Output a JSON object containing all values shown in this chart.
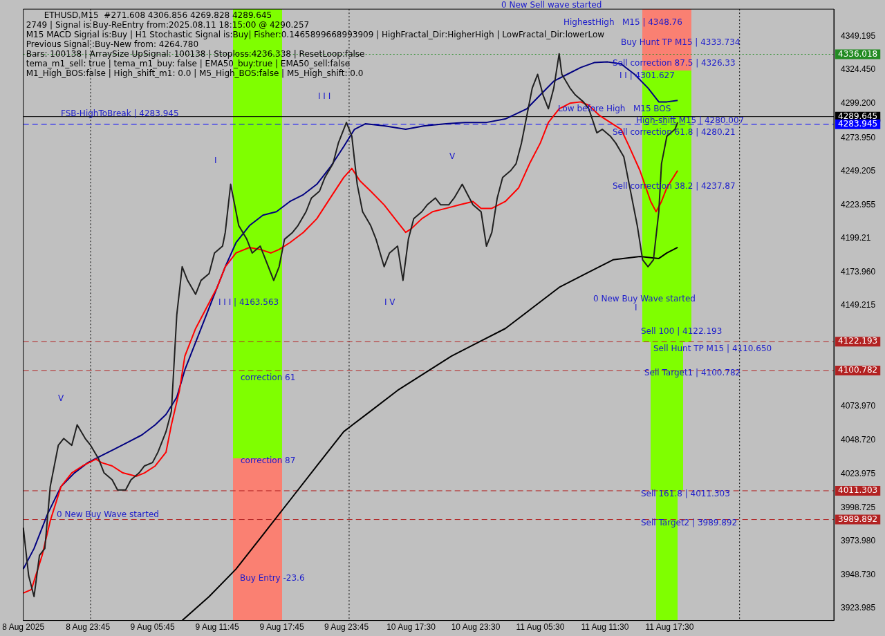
{
  "chart_data": {
    "type": "line",
    "title": "ETHUSD,M15  #271.608 4306.856 4269.828 4289.645",
    "categories": [
      "8 Aug 2025",
      null,
      null,
      null,
      null,
      null,
      null,
      null,
      null,
      null,
      null,
      null,
      null,
      null,
      null,
      null,
      null,
      null,
      null,
      null,
      null,
      null,
      null,
      null,
      "8 Aug 23:45",
      null,
      null,
      null,
      null,
      null,
      null,
      null,
      null,
      null,
      null,
      null,
      null,
      null,
      null,
      null,
      null,
      null,
      null,
      null,
      null,
      null,
      null,
      null,
      "9 Aug 05:45",
      null,
      null,
      null,
      null,
      null,
      null,
      null,
      null,
      null,
      null,
      null,
      null,
      null,
      null,
      null,
      null,
      null,
      null,
      null,
      null,
      null,
      null,
      null,
      "9 Aug 11:45",
      null,
      null,
      null,
      null,
      null,
      null,
      null,
      null,
      null,
      null,
      null,
      null,
      null,
      null,
      null,
      null,
      null,
      null,
      null,
      null,
      null,
      null,
      null,
      "9 Aug 17:45",
      null,
      null,
      null,
      null,
      null,
      null,
      null,
      null,
      null,
      null,
      null,
      null,
      null,
      null,
      null,
      null,
      null,
      null,
      null,
      null,
      null,
      null,
      null,
      "9 Aug 23:45",
      null,
      null,
      null,
      null,
      null,
      null,
      null,
      null,
      null,
      null,
      null,
      null,
      null,
      null,
      null,
      null,
      null,
      null,
      null,
      null,
      null,
      null,
      null,
      "10 Aug 17:30",
      null,
      null,
      null,
      null,
      null,
      null,
      null,
      null,
      null,
      null,
      null,
      null,
      null,
      null,
      null,
      null,
      null,
      null,
      null,
      null,
      null,
      null,
      null,
      "10 Aug 23:30",
      null,
      null,
      null,
      null,
      null,
      null,
      null,
      null,
      null,
      null,
      null,
      null,
      null,
      null,
      null,
      null,
      null,
      null,
      null,
      null,
      null,
      null,
      null,
      "11 Aug 05:30",
      null,
      null,
      null,
      null,
      null,
      null,
      null,
      null,
      null,
      null,
      null,
      null,
      null,
      null,
      null,
      null,
      null,
      null,
      null,
      null,
      null,
      null,
      null,
      "11 Aug 11:30",
      null,
      null,
      null,
      null,
      null,
      null,
      null,
      null,
      null,
      null,
      null,
      null,
      null,
      null,
      null,
      null,
      null,
      null,
      null,
      null,
      null,
      null,
      null,
      "11 Aug 17:30",
      null,
      null,
      null,
      null,
      null,
      null,
      null,
      null,
      null,
      null,
      null,
      null,
      null,
      null,
      null,
      null,
      null,
      null,
      null,
      null,
      null,
      null,
      null,
      null,
      null,
      null,
      null,
      null,
      null,
      null,
      null,
      null,
      null,
      null,
      null,
      null,
      null,
      null,
      null,
      null,
      null,
      null,
      null,
      null,
      null,
      null,
      null,
      null,
      null,
      null,
      null,
      null,
      null,
      null,
      null,
      null,
      null,
      null,
      null,
      null,
      null
    ],
    "ylim": [
      3914.8,
      4369.6
    ],
    "yticks": [
      4349.195,
      {
        "value": 4324.45,
        "label": "4324.450"
      },
      {
        "value": 4299.2,
        "label": "4299.200"
      },
      {
        "value": 4273.95,
        "label": "4273.950"
      },
      4249.205,
      4223.955,
      4199.21,
      {
        "value": 4173.96,
        "label": "4173.960"
      },
      4149.215,
      {
        "value": 4073.97,
        "label": "4073.970"
      },
      {
        "value": 4048.72,
        "label": "4048.720"
      },
      4023.975,
      3998.725,
      {
        "value": 3973.98,
        "label": "3973.980"
      },
      {
        "value": 3948.73,
        "label": "3948.730"
      },
      3923.985
    ],
    "grid": false,
    "legend": false,
    "marker": "none",
    "line_style": "solid",
    "series": [
      {
        "color": "#202020",
        "values": [
          3983.8,
          null,
          3948.0,
          null,
          3932.6,
          null,
          3963.3,
          null,
          3968.4,
          null,
          4014.4,
          null,
          null,
          4045.1,
          null,
          4050.2,
          null,
          null,
          4045.1,
          null,
          4060.4,
          null,
          null,
          4050.2,
          null,
          4045.1,
          null,
          null,
          4034.9,
          null,
          4024.6,
          null,
          null,
          4019.5,
          null,
          4011.9,
          null,
          null,
          4011.9,
          null,
          4019.5,
          null,
          null,
          4024.6,
          null,
          4029.8,
          null,
          null,
          4032.3,
          null,
          4040.0,
          null,
          null,
          4055.3,
          null,
          4070.6,
          null,
          4142.2,
          null,
          4178.0,
          null,
          4167.8,
          null,
          null,
          4157.5,
          null,
          4167.8,
          null,
          null,
          4172.9,
          null,
          4188.2,
          null,
          null,
          4193.3,
          4203.5,
          null,
          4239.3,
          null,
          4218.9,
          4208.6,
          null,
          null,
          4198.4,
          null,
          4188.2,
          null,
          null,
          4193.3,
          null,
          4183.1,
          null,
          null,
          4167.8,
          null,
          4178.0,
          null,
          4198.4,
          null,
          null,
          4203.5,
          null,
          4208.6,
          null,
          null,
          4218.9,
          null,
          4229.1,
          null,
          null,
          4234.2,
          null,
          4244.4,
          null,
          null,
          4254.6,
          null,
          4270.0,
          null,
          null,
          4285.3,
          null,
          4275.1,
          null,
          4239.3,
          null,
          4218.9,
          null,
          null,
          4208.6,
          null,
          4198.4,
          null,
          null,
          4178.0,
          null,
          4188.2,
          null,
          null,
          4193.3,
          null,
          4167.8,
          null,
          4198.4,
          null,
          4213.7,
          null,
          null,
          4218.9,
          null,
          4224.0,
          null,
          null,
          4229.1,
          null,
          4224.0,
          null,
          null,
          4224.0,
          null,
          4229.1,
          null,
          null,
          4239.3,
          null,
          4231.6,
          null,
          4224.0,
          null,
          null,
          4218.9,
          null,
          4193.3,
          null,
          4203.5,
          null,
          4229.1,
          null,
          4244.4,
          null,
          null,
          4249.5,
          null,
          4254.6,
          null,
          4270.0,
          null,
          4290.4,
          null,
          4310.9,
          null,
          4321.1,
          null,
          4305.8,
          null,
          4295.5,
          null,
          4310.9,
          null,
          4336.4,
          4321.1,
          null,
          null,
          4310.9,
          null,
          4305.8,
          null,
          null,
          4300.6,
          null,
          4295.5,
          null,
          null,
          4277.6,
          null,
          4280.2,
          null,
          null,
          4275.1,
          null,
          4270.0,
          null,
          null,
          4259.8,
          null,
          4239.3,
          null,
          null,
          4208.6,
          null,
          4183.1,
          null,
          4178.0,
          null,
          4183.1,
          null,
          4218.9,
          4254.6,
          null,
          4275.1,
          null,
          null,
          4280.2,
          4285.3,
          null,
          null,
          null,
          null,
          null,
          null,
          null,
          null,
          null,
          null,
          null,
          null,
          null,
          null,
          null,
          null,
          null,
          null,
          null,
          null,
          null,
          null,
          null,
          null,
          null,
          null,
          null,
          null,
          null,
          null,
          null,
          null,
          null,
          null,
          null,
          null,
          null,
          null,
          null,
          null,
          null,
          null,
          null,
          null,
          null,
          null,
          null,
          null,
          null,
          null,
          null,
          null,
          null,
          null,
          null,
          null,
          null,
          null
        ]
      },
      {
        "color": "#ff0000",
        "values": [
          3935.2,
          null,
          null,
          3937.8,
          null,
          null,
          null,
          3963.3,
          null,
          null,
          3988.9,
          null,
          null,
          null,
          4014.4,
          null,
          null,
          null,
          4024.6,
          null,
          null,
          null,
          4029.8,
          null,
          null,
          null,
          null,
          4034.9,
          null,
          4032.3,
          null,
          null,
          null,
          4029.8,
          null,
          null,
          null,
          4024.6,
          null,
          null,
          null,
          null,
          4022.1,
          null,
          null,
          4024.6,
          null,
          null,
          null,
          4029.8,
          null,
          null,
          null,
          4040.0,
          null,
          4060.4,
          null,
          null,
          4086.0,
          null,
          4111.5,
          null,
          null,
          null,
          4132.0,
          null,
          null,
          null,
          4147.3,
          null,
          null,
          null,
          4162.6,
          null,
          null,
          4178.0,
          null,
          null,
          null,
          4188.2,
          null,
          null,
          null,
          null,
          4192.3,
          null,
          null,
          null,
          4190.8,
          null,
          null,
          null,
          4188.2,
          null,
          null,
          4190.8,
          null,
          null,
          null,
          4195.9,
          null,
          null,
          null,
          null,
          4203.5,
          null,
          null,
          null,
          null,
          4213.7,
          null,
          null,
          null,
          null,
          4229.1,
          null,
          null,
          null,
          null,
          4244.4,
          null,
          null,
          4251.1,
          null,
          null,
          4241.9,
          null,
          null,
          null,
          4234.2,
          null,
          null,
          null,
          null,
          4224.0,
          null,
          null,
          null,
          4213.7,
          null,
          null,
          null,
          4203.5,
          null,
          4206.1,
          null,
          null,
          null,
          4213.7,
          null,
          null,
          null,
          4218.9,
          null,
          null,
          null,
          null,
          4221.4,
          null,
          null,
          null,
          null,
          4224.0,
          null,
          null,
          null,
          null,
          4226.5,
          null,
          null,
          4221.4,
          null,
          null,
          null,
          4221.4,
          null,
          null,
          null,
          null,
          4226.5,
          null,
          null,
          null,
          null,
          4236.8,
          null,
          null,
          null,
          4254.6,
          null,
          null,
          null,
          4270.0,
          null,
          null,
          4285.3,
          null,
          null,
          null,
          4295.5,
          null,
          null,
          null,
          4299.6,
          null,
          null,
          null,
          4300.6,
          null,
          null,
          4298.1,
          null,
          null,
          null,
          4290.4,
          null,
          null,
          null,
          4285.3,
          null,
          null,
          null,
          4280.2,
          null,
          null,
          4267.4,
          null,
          null,
          null,
          4249.5,
          null,
          null,
          null,
          4226.5,
          null,
          4218.9,
          null,
          4226.5,
          null,
          4236.8,
          null,
          null,
          null,
          4249.5,
          null,
          null,
          null,
          null,
          null,
          null,
          null,
          null,
          null,
          null,
          null,
          null,
          null,
          null,
          null,
          null,
          null,
          null,
          null,
          null,
          null,
          null,
          null,
          null,
          null,
          null,
          null,
          null,
          null,
          null,
          null,
          null,
          null,
          null,
          null,
          null,
          null,
          null,
          null,
          null,
          null,
          null,
          null,
          null,
          null,
          null,
          null,
          null,
          null,
          null,
          null,
          null,
          null,
          null,
          null,
          null,
          null,
          null
        ]
      },
      {
        "color": "#000080",
        "values": [
          3953.1,
          null,
          null,
          null,
          3968.4,
          null,
          null,
          null,
          null,
          3994.0,
          null,
          null,
          null,
          null,
          4014.4,
          null,
          null,
          null,
          null,
          4024.6,
          null,
          null,
          null,
          null,
          4032.3,
          null,
          null,
          null,
          null,
          4037.4,
          null,
          null,
          null,
          null,
          4042.5,
          null,
          null,
          null,
          null,
          4047.6,
          null,
          null,
          null,
          null,
          4052.8,
          null,
          null,
          null,
          null,
          4060.4,
          null,
          null,
          null,
          4068.1,
          null,
          null,
          null,
          4080.9,
          null,
          null,
          4101.3,
          null,
          null,
          null,
          4121.8,
          null,
          null,
          null,
          4142.2,
          null,
          null,
          null,
          4162.6,
          null,
          null,
          4178.0,
          null,
          null,
          null,
          4195.9,
          null,
          null,
          null,
          null,
          4208.6,
          null,
          null,
          null,
          null,
          4216.3,
          null,
          null,
          null,
          null,
          4218.9,
          null,
          null,
          null,
          null,
          4226.5,
          null,
          null,
          null,
          null,
          4231.6,
          null,
          null,
          null,
          null,
          4239.3,
          null,
          null,
          null,
          null,
          4252.1,
          null,
          null,
          null,
          null,
          4267.4,
          null,
          null,
          null,
          4280.2,
          null,
          null,
          null,
          4284.3,
          null,
          null,
          null,
          null,
          null,
          null,
          4282.8,
          null,
          null,
          null,
          null,
          null,
          null,
          null,
          4280.2,
          null,
          null,
          null,
          null,
          null,
          null,
          4282.8,
          null,
          null,
          null,
          null,
          null,
          null,
          null,
          4284.3,
          null,
          null,
          null,
          null,
          null,
          null,
          4285.3,
          null,
          null,
          null,
          null,
          null,
          null,
          null,
          4285.3,
          null,
          null,
          null,
          null,
          null,
          null,
          4287.9,
          null,
          null,
          null,
          null,
          null,
          null,
          null,
          4295.5,
          null,
          null,
          null,
          null,
          4305.8,
          null,
          null,
          null,
          null,
          4316.0,
          null,
          null,
          null,
          null,
          4321.1,
          null,
          null,
          null,
          null,
          4326.2,
          null,
          null,
          null,
          null,
          4329.8,
          null,
          null,
          null,
          null,
          4330.3,
          null,
          null,
          null,
          null,
          4328.8,
          null,
          null,
          null,
          null,
          4321.1,
          null,
          null,
          null,
          null,
          4310.9,
          null,
          null,
          null,
          4300.6,
          null,
          null,
          4300.6,
          null,
          null,
          null,
          4301.7,
          null,
          null,
          null,
          null,
          null,
          null,
          null,
          null,
          null,
          null,
          null,
          null,
          null,
          null,
          null,
          null,
          null,
          null,
          null,
          null,
          null,
          null,
          null,
          null,
          null,
          null,
          null,
          null,
          null,
          null,
          null,
          null,
          null,
          null,
          null,
          null,
          null,
          null,
          null,
          null,
          null,
          null,
          null,
          null,
          null,
          null,
          null,
          null,
          null,
          null,
          null,
          null,
          null,
          null,
          null,
          null,
          null,
          null
        ]
      },
      {
        "color": "#000000",
        "values": [
          null,
          null,
          null,
          null,
          null,
          null,
          null,
          null,
          null,
          null,
          null,
          null,
          null,
          null,
          null,
          null,
          null,
          null,
          null,
          null,
          null,
          null,
          null,
          null,
          null,
          null,
          null,
          null,
          null,
          null,
          null,
          null,
          null,
          null,
          null,
          null,
          null,
          null,
          null,
          null,
          null,
          null,
          null,
          null,
          null,
          null,
          null,
          null,
          null,
          null,
          null,
          null,
          null,
          null,
          null,
          null,
          null,
          null,
          null,
          3914.8,
          null,
          null,
          null,
          null,
          null,
          null,
          null,
          null,
          null,
          3932.6,
          null,
          null,
          null,
          null,
          null,
          null,
          null,
          null,
          null,
          3953.1,
          null,
          null,
          null,
          null,
          null,
          null,
          null,
          null,
          null,
          3978.6,
          null,
          null,
          null,
          null,
          null,
          null,
          null,
          null,
          null,
          4004.2,
          null,
          null,
          null,
          null,
          null,
          null,
          null,
          null,
          null,
          4029.8,
          null,
          null,
          null,
          null,
          null,
          null,
          null,
          null,
          null,
          4055.3,
          null,
          null,
          null,
          null,
          null,
          null,
          null,
          null,
          null,
          4070.6,
          null,
          null,
          null,
          null,
          null,
          null,
          null,
          null,
          null,
          4086.0,
          null,
          null,
          null,
          null,
          null,
          null,
          null,
          null,
          null,
          4098.8,
          null,
          null,
          null,
          null,
          null,
          null,
          null,
          null,
          null,
          4111.5,
          null,
          null,
          null,
          null,
          null,
          null,
          null,
          null,
          null,
          4121.8,
          null,
          null,
          null,
          null,
          null,
          null,
          null,
          null,
          null,
          4132.0,
          null,
          null,
          null,
          null,
          null,
          null,
          null,
          null,
          null,
          4147.3,
          null,
          null,
          null,
          null,
          null,
          null,
          null,
          null,
          null,
          4162.6,
          null,
          null,
          null,
          null,
          null,
          null,
          null,
          null,
          null,
          4172.9,
          null,
          null,
          null,
          null,
          null,
          null,
          null,
          null,
          null,
          4183.1,
          null,
          null,
          null,
          null,
          null,
          null,
          null,
          null,
          null,
          4185.6,
          null,
          null,
          null,
          null,
          null,
          null,
          4184.1,
          null,
          null,
          4188.2,
          null,
          null,
          null,
          4192.3,
          null,
          null,
          null,
          null,
          null,
          null,
          null,
          null,
          null,
          null,
          null,
          null,
          null,
          null,
          null,
          null,
          null,
          null,
          null,
          null,
          null,
          null,
          null,
          null,
          null,
          null,
          null,
          null,
          null,
          null,
          null,
          null,
          null,
          null,
          null,
          null,
          null,
          null,
          null,
          null,
          null,
          null,
          null,
          null,
          null,
          null,
          null,
          null,
          null,
          null,
          null,
          null,
          null,
          null,
          null,
          null,
          null,
          null
        ]
      }
    ],
    "ref_lines": [
      {
        "axis": "y",
        "value": 4336.018,
        "label": "4336.018",
        "color": "#228b22",
        "line_style": "dotted"
      },
      {
        "axis": "y",
        "value": 4289.645,
        "label": "4289.645",
        "color": "#000000",
        "line_style": "solid"
      },
      {
        "axis": "y",
        "value": 4283.945,
        "label": "4283.945",
        "color": "#0000ff",
        "line_style": "dashed"
      },
      {
        "axis": "y",
        "value": 4122.193,
        "label": "4122.193",
        "color": "#b22222",
        "line_style": "dashed"
      },
      {
        "axis": "y",
        "value": 4100.782,
        "label": "4100.782",
        "color": "#b22222",
        "line_style": "dashed"
      },
      {
        "axis": "y",
        "value": 4011.303,
        "label": "4011.303",
        "color": "#b22222",
        "line_style": "dashed"
      },
      {
        "axis": "y",
        "value": 3989.892,
        "label": "3989.892",
        "color": "#b22222",
        "line_style": "dashed"
      }
    ],
    "annotations": [
      "2749 | Signal is Buy-ReEntry from:2025.08.11 18:15:00 @ 4290.257",
      "M15 MACD Signal is:Buy | H1 Stochastic Signal is:Buy| Fisher:0.1465899668993909 | HighFractal_Dir:HigherHigh | LowFractal_Dir:lowerLow",
      "Previous Signal :Buy-New from: 4264.780",
      "Bars: 100138 | ArraySize UpSignal: 100138 | Stoploss:4236.338 | ResetLoop:false",
      "tema_m1_sell: true | tema_m1_buy: false | EMA50_buy:true | EMA50_sell:false",
      "M1_High_BOS:false | High_shift_m1: 0.0 | M5_High_BOS:false | M5_High_shift: 0.0",
      "0 New Sell wave started",
      "HighestHigh   M15 | 4348.76",
      "Buy Hunt TP M15 | 4333.734",
      "Sell correction 87.5 | 4326.33",
      "I I | 4301.627",
      "Low before High   M15 BOS",
      "High-shift M15 | 4280.007",
      "Sell correction 61.8 | 4280.21",
      "Sell correction 38.2 | 4237.87",
      "0 New Buy Wave started",
      "Sell 100 | 4122.193",
      "Sell Hunt TP M15 | 4110.650",
      "Sell Target1 | 4100.782",
      "Sell 161.8 | 4011.303",
      "Sell Target2 | 3989.892",
      "FSB-HighToBreak | 4283.945",
      "correction 61",
      "correction 87",
      "Buy Entry -23.6",
      "I I I | 4163.563",
      "0 New Buy Wave started",
      "V",
      "I",
      "I I I",
      "I V",
      "V",
      "I"
    ]
  }
}
